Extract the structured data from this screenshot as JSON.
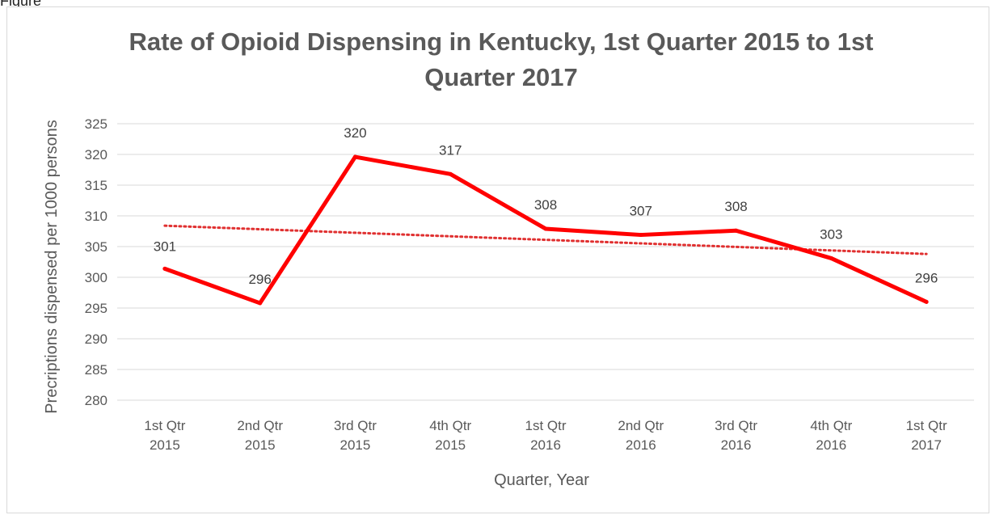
{
  "header": {
    "partial_label": "Figure"
  },
  "chart_data": {
    "type": "line",
    "title": "Rate of Opioid Dispensing in Kentucky, 1st Quarter 2015 to 1st Quarter 2017",
    "xlabel": "Quarter, Year",
    "ylabel": "Precriptions dispensed per 1000 persons",
    "categories": [
      [
        "1st Qtr",
        "2015"
      ],
      [
        "2nd Qtr",
        "2015"
      ],
      [
        "3rd Qtr",
        "2015"
      ],
      [
        "4th Qtr",
        "2015"
      ],
      [
        "1st Qtr",
        "2016"
      ],
      [
        "2nd Qtr",
        "2016"
      ],
      [
        "3rd Qtr",
        "2016"
      ],
      [
        "4th Qtr",
        "2016"
      ],
      [
        "1st Qtr",
        "2017"
      ]
    ],
    "values": [
      301.4,
      295.8,
      319.6,
      316.8,
      307.9,
      306.9,
      307.6,
      303.1,
      296.0
    ],
    "data_labels": [
      "301",
      "296",
      "320",
      "317",
      "308",
      "307",
      "308",
      "303",
      "296"
    ],
    "ylim": [
      280,
      325
    ],
    "yticks": [
      280,
      285,
      290,
      295,
      300,
      305,
      310,
      315,
      320,
      325
    ],
    "grid": true,
    "trendline": {
      "type": "linear",
      "style": "dotted",
      "start": 308.4,
      "end": 303.8
    },
    "colors": {
      "series": "#ff0000",
      "trend": "#e03030",
      "grid": "#d9d9d9",
      "text": "#595959"
    }
  }
}
